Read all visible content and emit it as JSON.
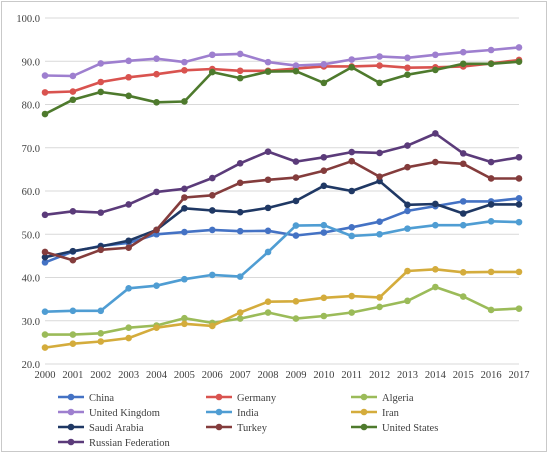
{
  "chart_data": {
    "type": "line",
    "title": "",
    "xlabel": "",
    "ylabel": "",
    "x": [
      2000,
      2001,
      2002,
      2003,
      2004,
      2005,
      2006,
      2007,
      2008,
      2009,
      2010,
      2011,
      2012,
      2013,
      2014,
      2015,
      2016,
      2017
    ],
    "y_ticks": [
      "20.0",
      "30.0",
      "40.0",
      "50.0",
      "60.0",
      "70.0",
      "80.0",
      "90.0",
      "100.0"
    ],
    "ylim": [
      20,
      100
    ],
    "grid": "horizontal",
    "legend_position": "bottom",
    "series": [
      {
        "name": "China",
        "color": "#4472c4",
        "values": [
          43.5,
          46.0,
          47.3,
          48.0,
          50.0,
          50.5,
          51.0,
          50.7,
          50.8,
          49.7,
          50.4,
          51.6,
          52.9,
          55.4,
          56.5,
          57.6,
          57.6,
          58.3
        ]
      },
      {
        "name": "Germany",
        "color": "#d9534f",
        "values": [
          82.8,
          83.0,
          85.2,
          86.3,
          87.0,
          87.9,
          88.2,
          87.8,
          87.8,
          88.3,
          88.8,
          88.8,
          89.0,
          88.5,
          88.6,
          88.8,
          89.5,
          90.3
        ]
      },
      {
        "name": "Algeria",
        "color": "#9bbb59",
        "values": [
          26.8,
          26.8,
          27.1,
          28.4,
          28.9,
          30.6,
          29.5,
          30.5,
          31.9,
          30.5,
          31.1,
          31.9,
          33.2,
          34.6,
          37.8,
          35.6,
          32.5,
          32.8
        ]
      },
      {
        "name": "United Kingdom",
        "color": "#9e7fcf",
        "values": [
          86.7,
          86.6,
          89.5,
          90.1,
          90.6,
          89.8,
          91.5,
          91.7,
          89.8,
          89.0,
          89.3,
          90.4,
          91.1,
          90.8,
          91.5,
          92.1,
          92.6,
          93.2
        ]
      },
      {
        "name": "India",
        "color": "#4f9dd3",
        "values": [
          32.1,
          32.3,
          32.3,
          37.5,
          38.1,
          39.6,
          40.6,
          40.2,
          45.9,
          52.0,
          52.1,
          49.6,
          50.0,
          51.3,
          52.1,
          52.1,
          53.0,
          52.8
        ]
      },
      {
        "name": "Iran",
        "color": "#d4ac3c",
        "values": [
          23.8,
          24.7,
          25.2,
          26.0,
          28.4,
          29.3,
          28.8,
          31.9,
          34.4,
          34.5,
          35.3,
          35.7,
          35.4,
          41.5,
          41.9,
          41.2,
          41.3,
          41.3
        ]
      },
      {
        "name": "Saudi Arabia",
        "color": "#1f3864",
        "values": [
          44.7,
          46.1,
          47.2,
          48.5,
          51.0,
          56.0,
          55.5,
          55.1,
          56.1,
          57.7,
          61.2,
          60.0,
          62.3,
          56.8,
          57.0,
          54.8,
          56.9,
          56.9
        ]
      },
      {
        "name": "Turkey",
        "color": "#843c3c",
        "values": [
          45.9,
          44.0,
          46.4,
          46.9,
          51.0,
          58.5,
          59.0,
          61.9,
          62.6,
          63.1,
          64.7,
          66.9,
          63.3,
          65.5,
          66.7,
          66.3,
          62.9,
          62.9
        ]
      },
      {
        "name": "United States",
        "color": "#4e7a2d",
        "values": [
          77.8,
          81.1,
          82.9,
          82.0,
          80.5,
          80.7,
          87.5,
          86.1,
          87.6,
          87.7,
          85.0,
          88.6,
          85.0,
          86.9,
          88.0,
          89.4,
          89.4,
          89.9
        ]
      },
      {
        "name": "Russian Federation",
        "color": "#5b3b7a",
        "values": [
          54.5,
          55.3,
          55.0,
          56.9,
          59.8,
          60.5,
          63.0,
          66.4,
          69.1,
          66.8,
          67.8,
          69.0,
          68.8,
          70.5,
          73.3,
          68.7,
          66.7,
          67.8
        ]
      }
    ]
  }
}
